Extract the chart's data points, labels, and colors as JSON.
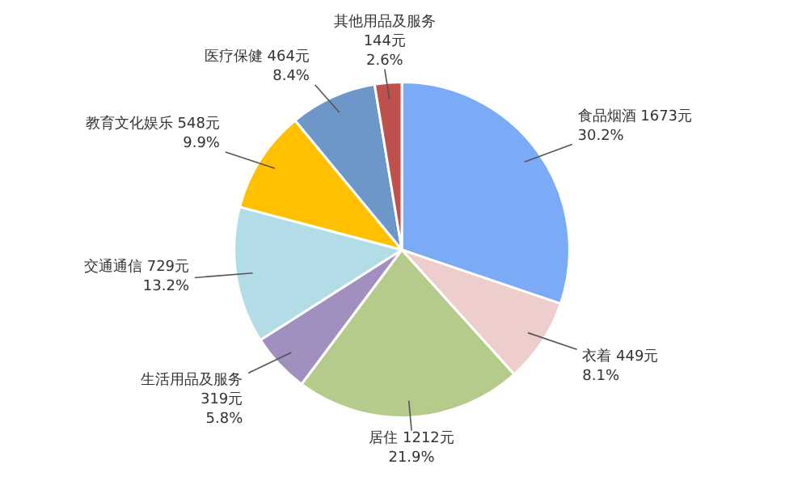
{
  "chart_data": {
    "type": "pie",
    "categories": [
      "食品烟酒",
      "衣着",
      "居住",
      "生活用品及服务",
      "交通通信",
      "教育文化娱乐",
      "医疗保健",
      "其他用品及服务"
    ],
    "values": [
      1673,
      449,
      1212,
      319,
      729,
      548,
      464,
      144
    ],
    "colors": [
      "#7baaf7",
      "#eecdcd",
      "#b5cb8b",
      "#a18fc0",
      "#b3dde6",
      "#ffc000",
      "#6e97c9",
      "#c0504d"
    ],
    "value_labels": [
      "1673元\n30.2%",
      "449元\n8.1%",
      "1212元\n21.9%",
      "319元\n5.8%",
      "729元\n13.2%",
      "548元\n9.9%",
      "464元\n8.4%",
      "144元\n2.6%"
    ]
  }
}
